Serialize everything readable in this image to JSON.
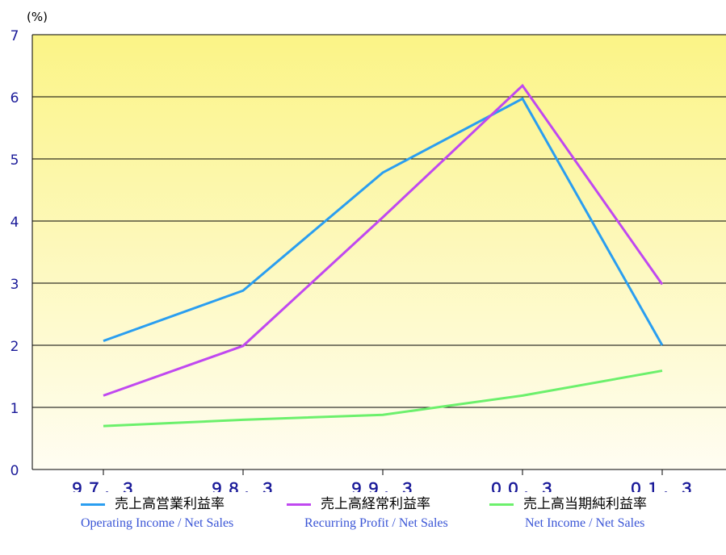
{
  "chart_data": {
    "type": "line",
    "unit_label": "(%)",
    "categories": [
      "９７．３",
      "９８．３",
      "９９．３",
      "００．３",
      "０１．３"
    ],
    "ylim": [
      0,
      7
    ],
    "yticks": [
      "0",
      "1",
      "2",
      "3",
      "4",
      "5",
      "6",
      "7"
    ],
    "grid": true,
    "legend_position": "bottom",
    "series": [
      {
        "name": "売上高営業利益率",
        "name_en": "Operating Income / Net Sales",
        "color": "#2a9ef0",
        "values": [
          2.07,
          2.88,
          4.78,
          5.97,
          2.0
        ]
      },
      {
        "name": "売上高経常利益率",
        "name_en": "Recurring Profit / Net Sales",
        "color": "#c048f0",
        "values": [
          1.19,
          1.99,
          4.06,
          6.18,
          2.98
        ]
      },
      {
        "name": "売上高当期純利益率",
        "name_en": "Net Income / Net Sales",
        "color": "#6cf06c",
        "values": [
          0.7,
          0.8,
          0.88,
          1.19,
          1.59
        ]
      }
    ]
  }
}
